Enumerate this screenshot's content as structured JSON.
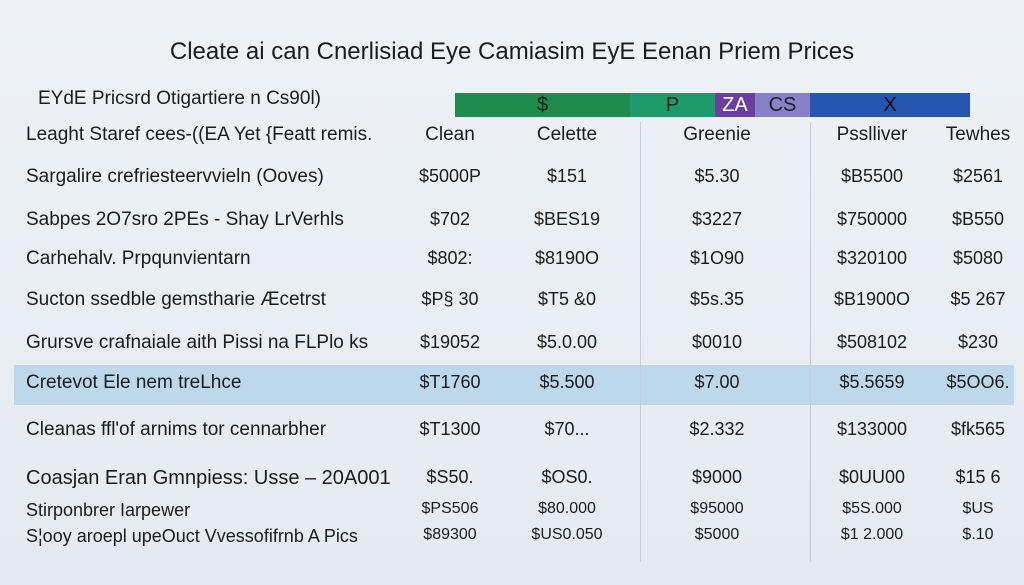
{
  "header": {
    "title": "Cleate ai can Cnerlisiad Eye Camiasim EyЕ Eenan Priem Prices",
    "subtitle": "EYdE Pricsrd Otigartiere n Cs90l)"
  },
  "band": {
    "labels": [
      "$",
      "P",
      "ZA",
      "CS",
      "X"
    ]
  },
  "table": {
    "columns": [
      "Leaght Staref cees-((EA Yet {Featt remis.",
      "Clean",
      "Celette",
      "Greenie",
      "Psslliver",
      "Tewhes"
    ],
    "rows": [
      [
        "Sargalire crefriesteervvieln (Ooves)",
        "$5000P",
        "$151",
        "$5.30",
        "$B5500",
        "$2561"
      ],
      [
        "Sabpes 2O7sro 2PEs - Shay LrVerhls",
        "$702",
        "$BES19",
        "$3227",
        "$750000",
        "$B550"
      ],
      [
        "Carhehalv. Prpqunvientarn",
        "$802:",
        "$8190O",
        "$1O90",
        "$320100",
        "$5080"
      ],
      [
        "Sucton ssedble gemstharie Æcetrst",
        "$P§ 30",
        "$T5 &0",
        "$5s.35",
        "$B1900O",
        "$5 267"
      ],
      [
        "Grursve crafnaiale aith Pissi na FLPlo ks",
        "$19052",
        "$5.0.00",
        "$0010",
        "$508102",
        "$230"
      ],
      [
        "Cretevot Ele nem treLhce",
        "$T1760",
        "$5.500",
        "$7.00",
        "$5.5659",
        "$5OO6."
      ],
      [
        "Cleanas ffl'of arnims tor cennarbher",
        "$T1300",
        "$70...",
        "$2.332",
        "$133000",
        "$fk565"
      ],
      [
        "Coasjan Eran Gmnpiess: Usse – 20A001",
        "$S50.",
        "$OS0.",
        "$9000",
        "$0UU00",
        "$15 6"
      ],
      [
        "Stirponbrer Iarpewer",
        "$PS506",
        "$80.000",
        "$95000",
        "$5S.000",
        "$US"
      ],
      [
        "S¦ooy aroepl upeOuct Vvessofifrnb A Pics",
        "$89300",
        "$US0.050",
        "$5000",
        "$1 2.000",
        "$.10"
      ]
    ]
  }
}
